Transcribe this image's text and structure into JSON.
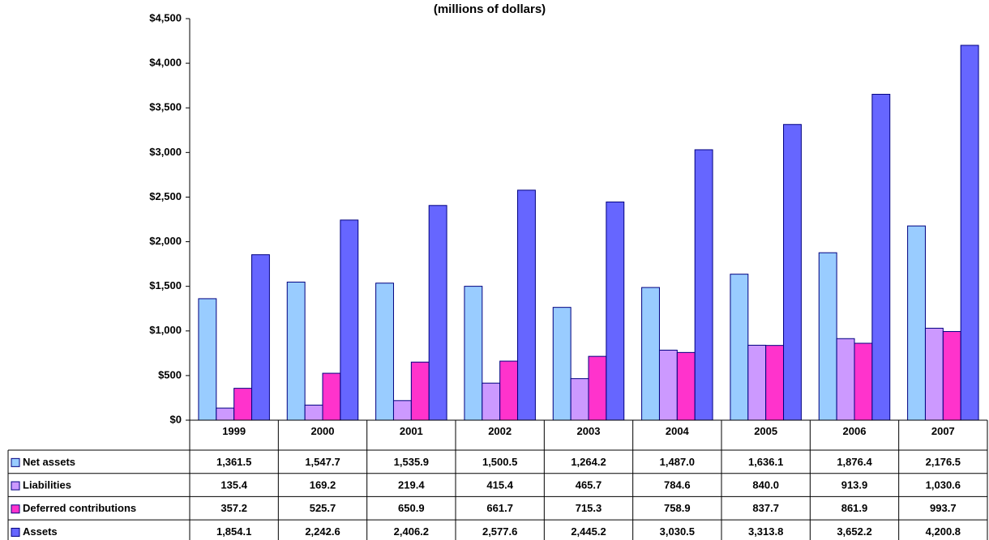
{
  "chart_data": {
    "type": "bar",
    "title": "(millions of dollars)",
    "categories": [
      "1999",
      "2000",
      "2001",
      "2002",
      "2003",
      "2004",
      "2005",
      "2006",
      "2007"
    ],
    "series": [
      {
        "name": "Net assets",
        "color": "#99ccff",
        "values": [
          1361.5,
          1547.7,
          1535.9,
          1500.5,
          1264.2,
          1487.0,
          1636.1,
          1876.4,
          2176.5
        ],
        "value_labels": [
          "1,361.5",
          "1,547.7",
          "1,535.9",
          "1,500.5",
          "1,264.2",
          "1,487.0",
          "1,636.1",
          "1,876.4",
          "2,176.5"
        ]
      },
      {
        "name": "Liabilities",
        "color": "#cc99ff",
        "values": [
          135.4,
          169.2,
          219.4,
          415.4,
          465.7,
          784.6,
          840.0,
          913.9,
          1030.6
        ],
        "value_labels": [
          "135.4",
          "169.2",
          "219.4",
          "415.4",
          "465.7",
          "784.6",
          "840.0",
          "913.9",
          "1,030.6"
        ]
      },
      {
        "name": "Deferred contributions",
        "color": "#ff33cc",
        "values": [
          357.2,
          525.7,
          650.9,
          661.7,
          715.3,
          758.9,
          837.7,
          861.9,
          993.7
        ],
        "value_labels": [
          "357.2",
          "525.7",
          "650.9",
          "661.7",
          "715.3",
          "758.9",
          "837.7",
          "861.9",
          "993.7"
        ]
      },
      {
        "name": "Assets",
        "color": "#6666ff",
        "values": [
          1854.1,
          2242.6,
          2406.2,
          2577.6,
          2445.2,
          3030.5,
          3313.8,
          3652.2,
          4200.8
        ],
        "value_labels": [
          "1,854.1",
          "2,242.6",
          "2,406.2",
          "2,577.6",
          "2,445.2",
          "3,030.5",
          "3,313.8",
          "3,652.2",
          "4,200.8"
        ]
      }
    ],
    "ylim": [
      0,
      4500
    ],
    "yticks": [
      {
        "value": 0,
        "label": "$0"
      },
      {
        "value": 500,
        "label": "$500"
      },
      {
        "value": 1000,
        "label": "$1,000"
      },
      {
        "value": 1500,
        "label": "$1,500"
      },
      {
        "value": 2000,
        "label": "$2,000"
      },
      {
        "value": 2500,
        "label": "$2,500"
      },
      {
        "value": 3000,
        "label": "$3,000"
      },
      {
        "value": 3500,
        "label": "$3,500"
      },
      {
        "value": 4000,
        "label": "$4,000"
      },
      {
        "value": 4500,
        "label": "$4,500"
      }
    ],
    "grid": false
  }
}
